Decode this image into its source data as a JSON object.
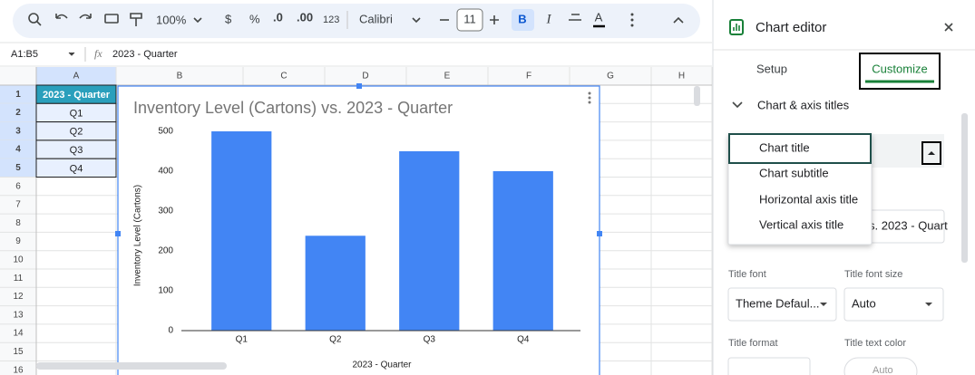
{
  "toolbar": {
    "zoom": "100%",
    "currency": "$",
    "percent": "%",
    "decrease_decimals": ".0",
    "increase_decimals": ".00",
    "number_format": "123",
    "font": "Calibri",
    "font_size": "11",
    "bold": "B",
    "italic": "I",
    "text_color": "A"
  },
  "formula_bar": {
    "name_box": "A1:B5",
    "fx": "fx",
    "content": "2023 - Quarter"
  },
  "sheet": {
    "columns": [
      "A",
      "B",
      "C",
      "D",
      "E",
      "F",
      "G",
      "H"
    ],
    "rows": [
      1,
      2,
      3,
      4,
      5,
      6,
      7,
      8,
      9,
      10,
      11,
      12,
      13,
      14,
      15,
      16
    ],
    "cells": [
      "2023 - Quarter",
      "Q1",
      "Q2",
      "Q3",
      "Q4"
    ]
  },
  "chart_data": {
    "type": "bar",
    "title": "Inventory Level (Cartons) vs. 2023 - Quarter",
    "x_label": "2023 - Quarter",
    "y_label": "Inventory Level (Cartons)",
    "categories": [
      "Q1",
      "Q2",
      "Q3",
      "Q4"
    ],
    "values": [
      500,
      238,
      450,
      400
    ],
    "color": "#4285f4",
    "ylim": [
      0,
      500
    ],
    "yticks": [
      0,
      100,
      200,
      300,
      400,
      500
    ],
    "grid": false
  },
  "editor": {
    "title": "Chart editor",
    "tabs": [
      "Setup",
      "Customize"
    ],
    "section": "Chart & axis titles",
    "title_options": [
      "Chart title",
      "Chart subtitle",
      "Horizontal axis title",
      "Vertical axis title"
    ],
    "title_text": "s. 2023 - Quart",
    "title_font_label": "Title font",
    "title_font": "Theme Defaul...",
    "title_font_size_label": "Title font size",
    "title_font_size": "Auto",
    "title_format_label": "Title format",
    "title_text_color_label": "Title text color",
    "title_text_color": "Auto"
  }
}
